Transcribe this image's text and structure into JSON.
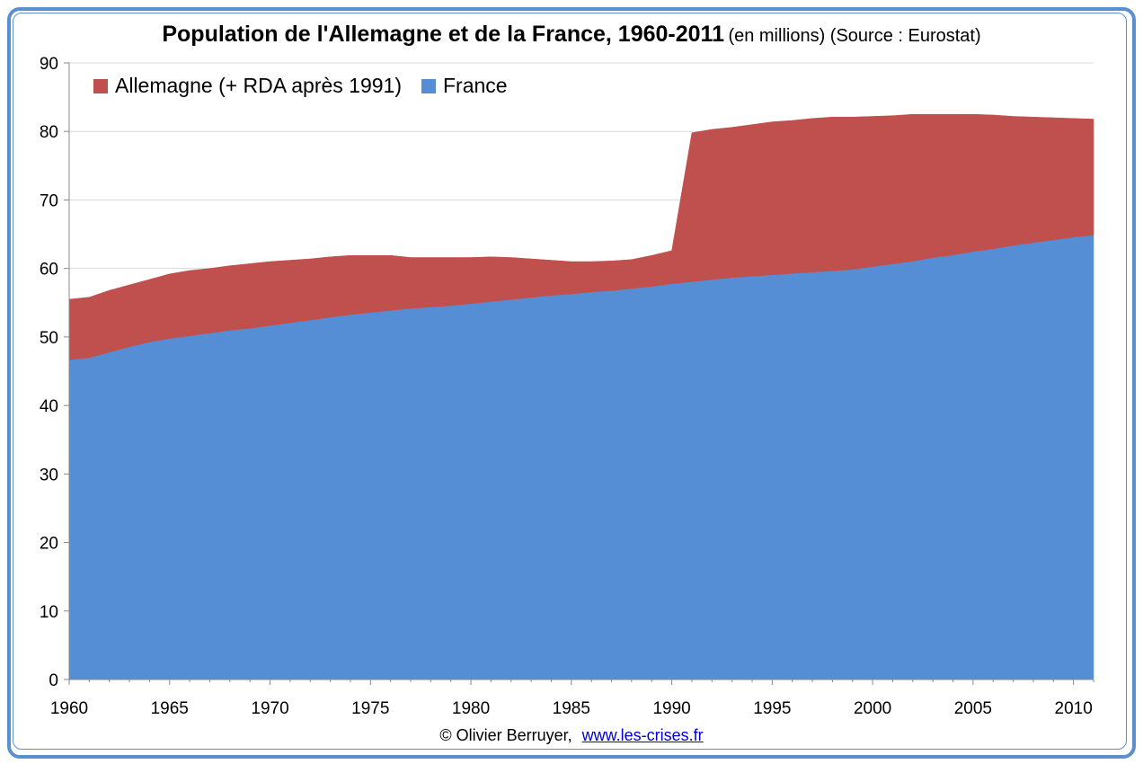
{
  "title": {
    "main": "Population de l'Allemagne et de la France, 1960-2011",
    "sub": "(en millions) (Source : Eurostat)"
  },
  "footer": {
    "copyright": "© Olivier Berruyer,",
    "link_text": "www.les-crises.fr"
  },
  "chart_data": {
    "type": "area",
    "stacked": true,
    "title": "Population de l'Allemagne et de la France, 1960-2011",
    "xlabel": "",
    "ylabel": "",
    "xlim": [
      1960,
      2011
    ],
    "ylim": [
      0,
      90
    ],
    "x_ticks": [
      1960,
      1965,
      1970,
      1975,
      1980,
      1985,
      1990,
      1995,
      2000,
      2005,
      2010
    ],
    "y_ticks": [
      0,
      10,
      20,
      30,
      40,
      50,
      60,
      70,
      80,
      90
    ],
    "grid": true,
    "legend_position": "top-left",
    "x": [
      1960,
      1961,
      1962,
      1963,
      1964,
      1965,
      1966,
      1967,
      1968,
      1969,
      1970,
      1971,
      1972,
      1973,
      1974,
      1975,
      1976,
      1977,
      1978,
      1979,
      1980,
      1981,
      1982,
      1983,
      1984,
      1985,
      1986,
      1987,
      1988,
      1989,
      1990,
      1991,
      1992,
      1993,
      1994,
      1995,
      1996,
      1997,
      1998,
      1999,
      2000,
      2001,
      2002,
      2003,
      2004,
      2005,
      2006,
      2007,
      2008,
      2009,
      2010,
      2011
    ],
    "series": [
      {
        "name": "France",
        "color": "#558ed5",
        "values": [
          46.6,
          46.9,
          47.7,
          48.5,
          49.2,
          49.7,
          50.1,
          50.5,
          50.9,
          51.2,
          51.6,
          52.0,
          52.4,
          52.8,
          53.2,
          53.5,
          53.8,
          54.1,
          54.3,
          54.5,
          54.8,
          55.1,
          55.4,
          55.7,
          56.0,
          56.2,
          56.5,
          56.7,
          57.0,
          57.3,
          57.7,
          58.0,
          58.3,
          58.6,
          58.8,
          59.0,
          59.2,
          59.4,
          59.6,
          59.8,
          60.2,
          60.6,
          61.0,
          61.5,
          61.9,
          62.4,
          62.8,
          63.3,
          63.7,
          64.1,
          64.5,
          64.8
        ]
      },
      {
        "name": "Allemagne (+ RDA après 1991)",
        "color": "#c0504d",
        "values": [
          8.9,
          8.9,
          9.1,
          9.1,
          9.2,
          9.5,
          9.6,
          9.5,
          9.5,
          9.5,
          9.4,
          9.2,
          9.0,
          8.9,
          8.7,
          8.4,
          8.1,
          7.5,
          7.3,
          7.1,
          6.8,
          6.6,
          6.2,
          5.7,
          5.2,
          4.8,
          4.5,
          4.4,
          4.3,
          4.6,
          4.9,
          21.8,
          22.0,
          22.0,
          22.2,
          22.4,
          22.4,
          22.5,
          22.5,
          22.3,
          22.0,
          21.7,
          21.5,
          21.0,
          20.6,
          20.1,
          19.6,
          18.9,
          18.4,
          17.9,
          17.4,
          17.0
        ]
      }
    ]
  }
}
